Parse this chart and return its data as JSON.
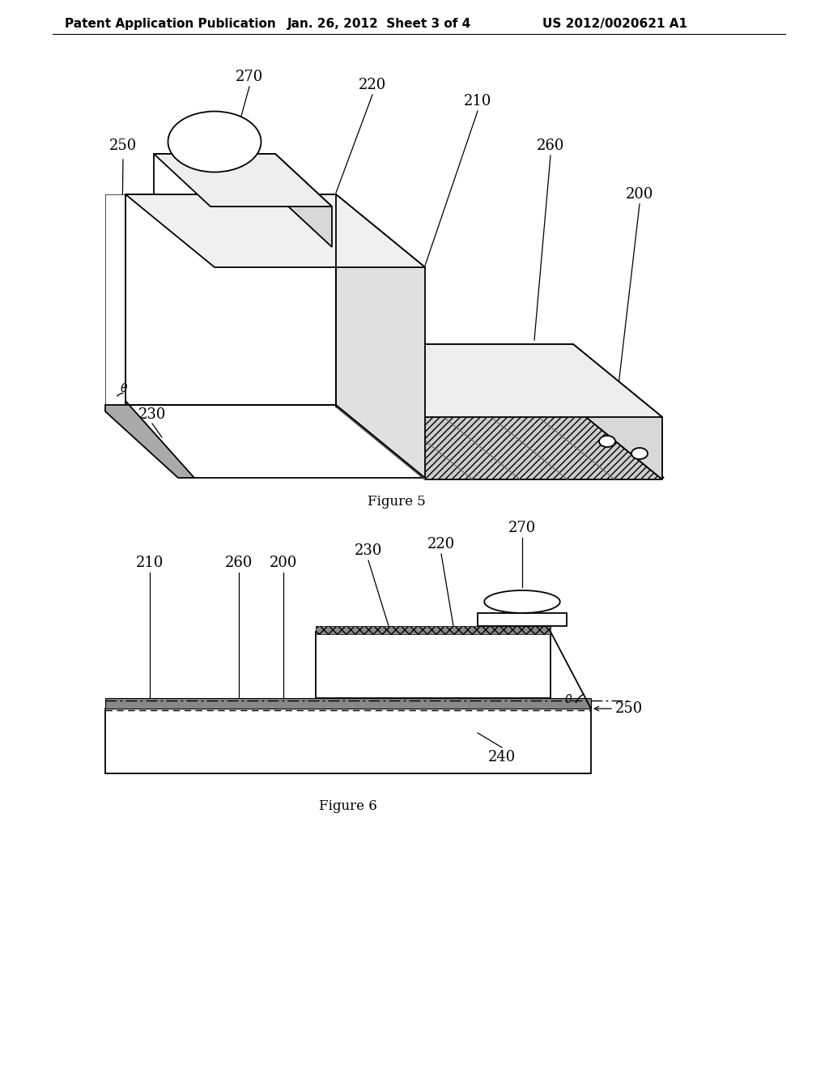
{
  "header_left": "Patent Application Publication",
  "header_mid": "Jan. 26, 2012  Sheet 3 of 4",
  "header_right": "US 2012/0020621 A1",
  "fig5_caption": "Figure 5",
  "fig6_caption": "Figure 6",
  "background_color": "#ffffff",
  "line_color": "#000000",
  "label_fontsize": 13,
  "header_fontsize": 11,
  "caption_fontsize": 12
}
